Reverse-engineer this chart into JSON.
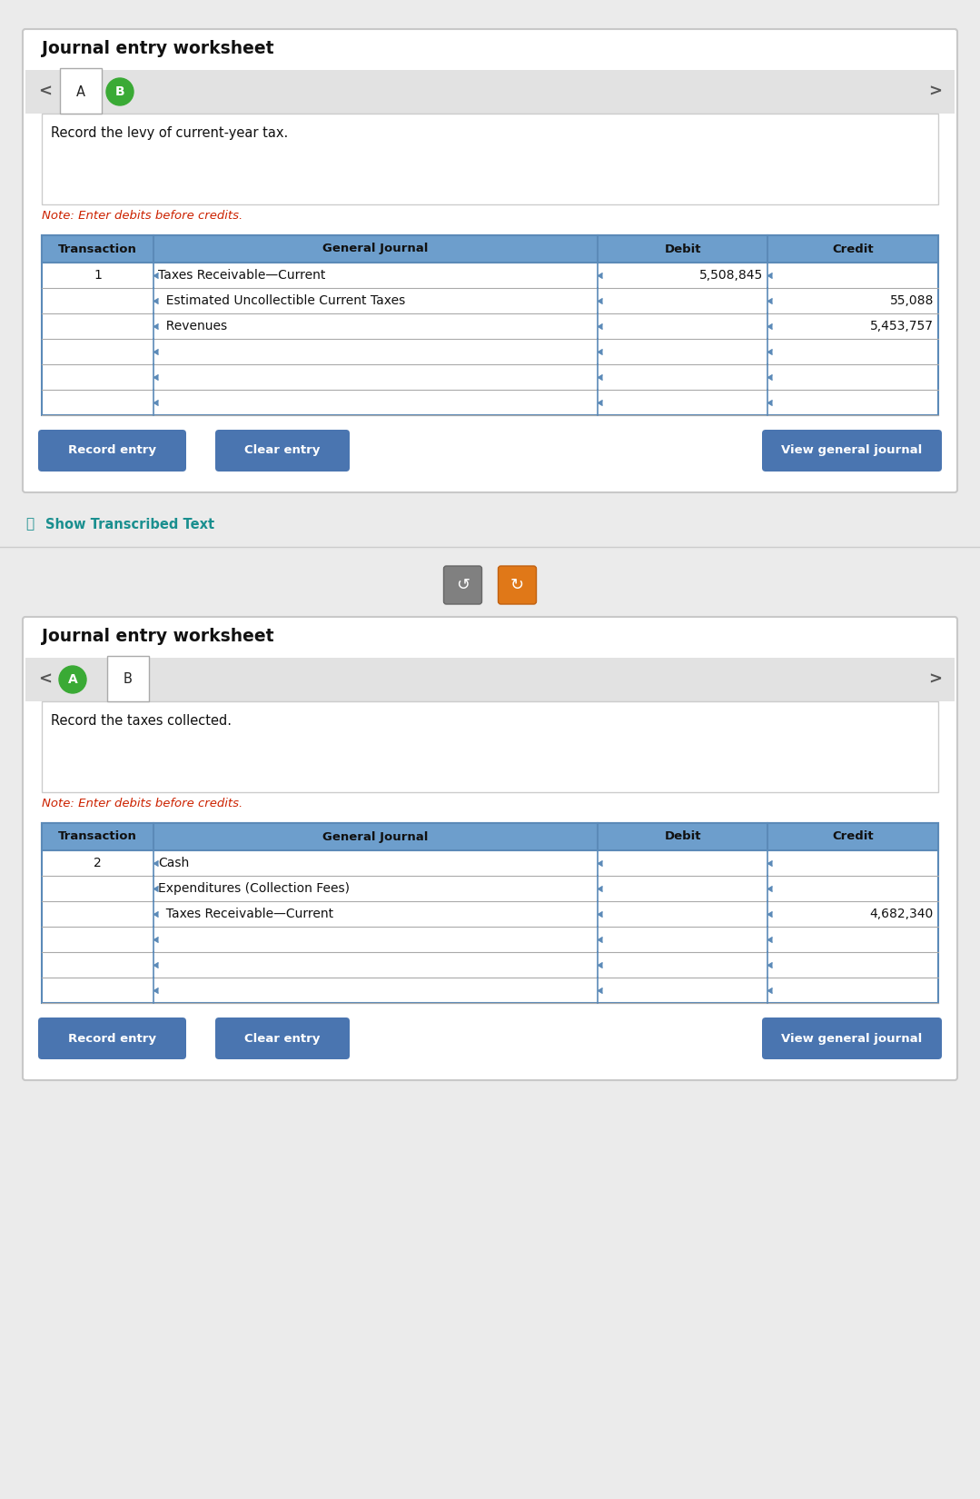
{
  "bg_color": "#ebebeb",
  "card_bg": "#ffffff",
  "card_border": "#c8c8c8",
  "panel_bg": "#f5f5f5",
  "header_bg": "#6d9ecc",
  "table_border": "#5b8ab8",
  "note_color": "#cc2200",
  "button_bg": "#4a75b0",
  "button_text_color": "#ffffff",
  "show_transcribed_color": "#1a8f8f",
  "panel1": {
    "title": "Journal entry worksheet",
    "description": "Record the levy of current-year tax.",
    "note": "Note: Enter debits before credits.",
    "col_headers": [
      "Transaction",
      "General Journal",
      "Debit",
      "Credit"
    ],
    "rows": [
      [
        "1",
        "Taxes Receivable—Current",
        "5,508,845",
        ""
      ],
      [
        "",
        "  Estimated Uncollectible Current Taxes",
        "",
        "55,088"
      ],
      [
        "",
        "  Revenues",
        "",
        "5,453,757"
      ],
      [
        "",
        "",
        "",
        ""
      ],
      [
        "",
        "",
        "",
        ""
      ],
      [
        "",
        "",
        "",
        ""
      ]
    ],
    "tab_left_label": "A",
    "tab_left_active": true,
    "tab_right_label": "B",
    "tab_right_green": true,
    "buttons": [
      "Record entry",
      "Clear entry",
      "View general journal"
    ]
  },
  "panel2": {
    "title": "Journal entry worksheet",
    "description": "Record the taxes collected.",
    "note": "Note: Enter debits before credits.",
    "col_headers": [
      "Transaction",
      "General Journal",
      "Debit",
      "Credit"
    ],
    "rows": [
      [
        "2",
        "Cash",
        "",
        ""
      ],
      [
        "",
        "Expenditures (Collection Fees)",
        "",
        ""
      ],
      [
        "",
        "  Taxes Receivable—Current",
        "",
        "4,682,340"
      ],
      [
        "",
        "",
        "",
        ""
      ],
      [
        "",
        "",
        "",
        ""
      ],
      [
        "",
        "",
        "",
        ""
      ]
    ],
    "tab_left_label": "A",
    "tab_left_green": true,
    "tab_right_label": "B",
    "tab_right_active": true,
    "buttons": [
      "Record entry",
      "Clear entry",
      "View general journal"
    ]
  },
  "show_transcribed_text": "Show Transcribed Text"
}
